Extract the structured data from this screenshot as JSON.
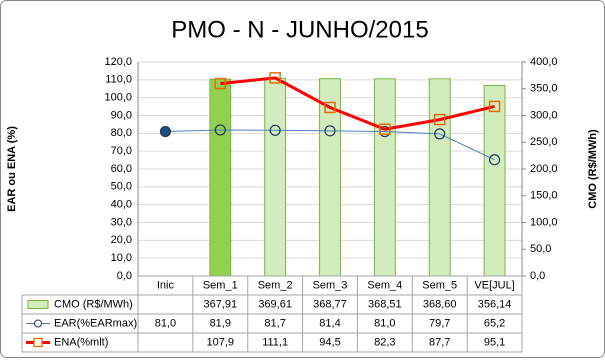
{
  "chart_data": {
    "type": "bar-line-table",
    "title": "PMO - N - JUNHO/2015",
    "y_label": "EAR ou ENA (%)",
    "y2_label": "CMO (R$/MWh)",
    "categories": [
      "Inic",
      "Sem_1",
      "Sem_2",
      "Sem_3",
      "Sem_4",
      "Sem_5",
      "VE[JUL]"
    ],
    "ylim": [
      0,
      120
    ],
    "yticks": [
      {
        "value": 0,
        "label": "0,0"
      },
      {
        "value": 10,
        "label": "10,0"
      },
      {
        "value": 20,
        "label": "20,0"
      },
      {
        "value": 30,
        "label": "30,0"
      },
      {
        "value": 40,
        "label": "40,0"
      },
      {
        "value": 50,
        "label": "50,0"
      },
      {
        "value": 60,
        "label": "60,0"
      },
      {
        "value": 70,
        "label": "70,0"
      },
      {
        "value": 80,
        "label": "80,0"
      },
      {
        "value": 90,
        "label": "90,0"
      },
      {
        "value": 100,
        "label": "100,0"
      },
      {
        "value": 110,
        "label": "110,0"
      },
      {
        "value": 120,
        "label": "120,0"
      }
    ],
    "y2lim": [
      0,
      400
    ],
    "y2ticks": [
      {
        "value": 0,
        "label": "0,0"
      },
      {
        "value": 50,
        "label": "50,0"
      },
      {
        "value": 100,
        "label": "100,0"
      },
      {
        "value": 150,
        "label": "150,0"
      },
      {
        "value": 200,
        "label": "200,0"
      },
      {
        "value": 250,
        "label": "250,0"
      },
      {
        "value": 300,
        "label": "300,0"
      },
      {
        "value": 350,
        "label": "350,0"
      },
      {
        "value": 400,
        "label": "400,0"
      }
    ],
    "grid": true,
    "series": [
      {
        "name": "CMO (R$/MWh)",
        "kind": "bar",
        "axis": "y2",
        "color": "#d3ecbd",
        "edge": "#7cb342",
        "colors": [
          null,
          "#92d050",
          "#d3ecbd",
          "#d3ecbd",
          "#d3ecbd",
          "#d3ecbd",
          "#d3ecbd"
        ],
        "values": [
          null,
          367.91,
          369.61,
          368.77,
          368.51,
          368.6,
          356.14
        ],
        "value_labels": [
          null,
          "367,91",
          "369,61",
          "368,77",
          "368,51",
          "368,60",
          "356,14"
        ]
      },
      {
        "name": "EAR(%EARmax)",
        "kind": "line",
        "marker": "circle",
        "color": "#4f81bd",
        "edge": "#1f3864",
        "marker_fills": [
          "#1f4e79",
          "none",
          "none",
          "none",
          "none",
          "none",
          "none"
        ],
        "values": [
          81.0,
          81.9,
          81.7,
          81.4,
          81.0,
          79.7,
          65.2
        ],
        "value_labels": [
          "81,0",
          "81,9",
          "81,7",
          "81,4",
          "81,0",
          "79,7",
          "65,2"
        ]
      },
      {
        "name": "ENA(%mlt)",
        "kind": "line",
        "marker": "square",
        "color": "#ff0000",
        "edge": "#e36c09",
        "values": [
          null,
          107.9,
          111.1,
          94.5,
          82.3,
          87.7,
          95.1
        ],
        "value_labels": [
          null,
          "107,9",
          "111,1",
          "94,5",
          "82,3",
          "87,7",
          "95,1"
        ]
      }
    ]
  }
}
